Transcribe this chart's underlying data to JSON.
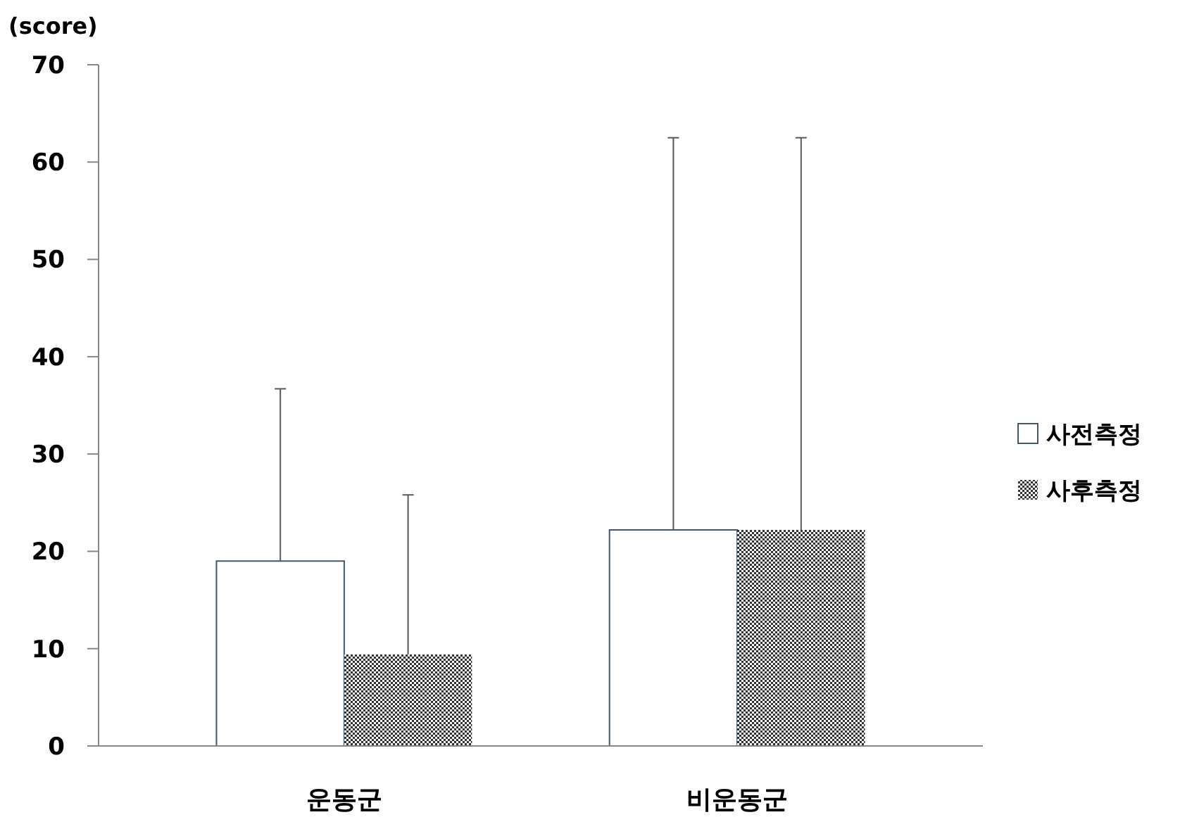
{
  "chart_data": {
    "type": "bar",
    "ylabel": "(score)",
    "categories": [
      "운동군",
      "비운동군"
    ],
    "series": [
      {
        "name": "사전측정",
        "color": "#ffffff",
        "values": [
          19.0,
          22.2
        ],
        "errors": [
          [
            19.0,
            36.7
          ],
          [
            22.2,
            62.5
          ]
        ]
      },
      {
        "name": "사후측정",
        "color": "#333333",
        "values": [
          9.4,
          22.2
        ],
        "errors": [
          [
            9.4,
            25.8
          ],
          [
            22.2,
            62.5
          ]
        ]
      }
    ],
    "ylim": [
      0,
      70
    ],
    "yticks": [
      0,
      10,
      20,
      30,
      40,
      50,
      60,
      70
    ],
    "legend": "right",
    "grid": false
  }
}
